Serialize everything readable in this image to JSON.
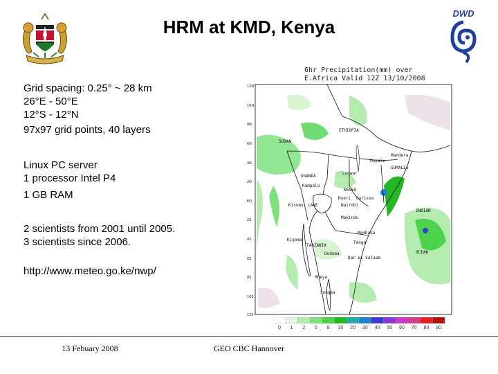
{
  "slide": {
    "title": "HRM at KMD, Kenya",
    "bullets": [
      "Grid spacing: 0.25° ~ 28 km",
      "26°E - 50°E",
      "12°S - 12°N",
      "97x97 grid points, 40 layers",
      "Linux PC server",
      "1 processor Intel P4",
      "1 GB RAM",
      "2 scientists from 2001 until 2005.",
      "3 scientists since 2006.",
      "http://www.meteo.go.ke/nwp/"
    ],
    "footer": {
      "date": "13 Febuary 2008",
      "event": "GEO CBC Hannover"
    },
    "logo_text": "DWD"
  },
  "map": {
    "title_line1": "6hr Precipitation(mm) over",
    "title_line2": "E.Africa Valid 12Z 13/10/2008",
    "lat_labels": [
      "12N",
      "10N",
      "8N",
      "6N",
      "4N",
      "2N",
      "EQ",
      "2S",
      "4S",
      "6S",
      "8S",
      "10S",
      "12S"
    ],
    "lon_labels": [
      "26E",
      "28E",
      "30E",
      "32E",
      "34E",
      "36E",
      "38E",
      "40E",
      "42E",
      "44E",
      "46E",
      "48E",
      "50E"
    ],
    "places": {
      "ethiopia": "ETHIOPIA",
      "sudan": "SUDAN",
      "somalia": "SOMALIA",
      "uganda": "UGANDA",
      "kenya": "KENYA",
      "tanzania": "TANZANIA",
      "indian_ocean": "INDIAN",
      "ocean": "OCEAN",
      "lake": "LAKE",
      "moyale": "Moyale",
      "mandera": "Mandera",
      "kampala": "Kampala",
      "nairobi": "Nairobi",
      "garissa": "Garissa",
      "kisumu": "Kisumu",
      "nyeri": "Nyeri",
      "makindu": "Makindu",
      "mombasa": "Mombasa",
      "tanga": "Tanga",
      "dodoma": "Dodoma",
      "dar": "Dar es Salaam",
      "mbeya": "Mbeya",
      "songea": "Songea",
      "kigoma": "Kigoma",
      "lodwar": "Lodwar"
    },
    "colorbar": {
      "labels": [
        "0",
        "1",
        "2",
        "5",
        "8",
        "10",
        "20",
        "30",
        "40",
        "50",
        "60",
        "70",
        "80",
        "90"
      ],
      "colors": [
        "#ffffff",
        "#e6f5e0",
        "#b4ecb0",
        "#7fe07f",
        "#4cd24c",
        "#23b823",
        "#22aaaa",
        "#1f7fd4",
        "#3a3ad4",
        "#8a3ad4",
        "#c43ac4",
        "#d43a8a",
        "#e02020",
        "#b01010"
      ]
    }
  }
}
